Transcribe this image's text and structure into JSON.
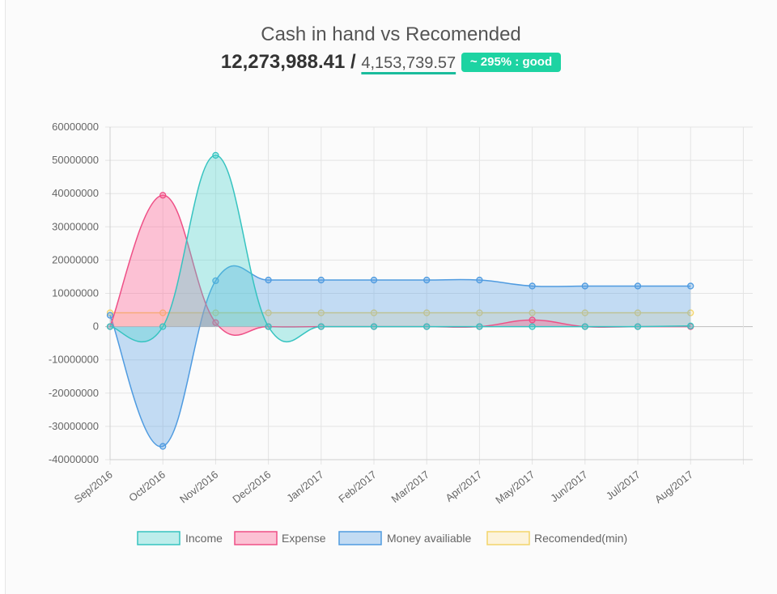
{
  "header": {
    "title": "Cash in hand vs Recomended",
    "cash_in_hand": "12,273,988.41",
    "separator": "/",
    "recommended": "4,153,739.57",
    "badge": "~ 295% : good",
    "badge_color": "#1dd3a2"
  },
  "chart_data": {
    "type": "area",
    "categories": [
      "Sep/2016",
      "Oct/2016",
      "Nov/2016",
      "Dec/2016",
      "Jan/2017",
      "Feb/2017",
      "Mar/2017",
      "Apr/2017",
      "May/2017",
      "Jun/2017",
      "Jul/2017",
      "Aug/2017"
    ],
    "ylim": [
      -40000000,
      60000000
    ],
    "yticks": [
      "60000000",
      "50000000",
      "40000000",
      "30000000",
      "20000000",
      "10000000",
      "0",
      "-10000000",
      "-20000000",
      "-30000000",
      "-40000000"
    ],
    "grid": true,
    "legend_position": "bottom",
    "series": [
      {
        "name": "Income",
        "values": [
          0,
          0,
          51500000,
          0,
          0,
          0,
          0,
          0,
          0,
          0,
          0,
          200000
        ],
        "stroke": "#36c3c0",
        "fill": "rgba(75,213,205,0.35)"
      },
      {
        "name": "Expense",
        "values": [
          0,
          39500000,
          1200000,
          0,
          0,
          0,
          0,
          0,
          2000000,
          0,
          0,
          0
        ],
        "stroke": "#ee4f86",
        "fill": "rgba(255,99,150,0.38)"
      },
      {
        "name": "Money availiable",
        "values": [
          3400000,
          -36000000,
          13800000,
          14000000,
          14000000,
          14000000,
          14000000,
          14000000,
          12200000,
          12200000,
          12200000,
          12200000
        ],
        "stroke": "#4f9be0",
        "fill": "rgba(88,160,230,0.35)"
      },
      {
        "name": "Recomended(min)",
        "values": [
          4150000,
          4150000,
          4150000,
          4150000,
          4150000,
          4150000,
          4150000,
          4150000,
          4150000,
          4150000,
          4150000,
          4150000
        ],
        "stroke": "#f3d56a",
        "fill": "rgba(255,230,160,0.35)"
      }
    ]
  }
}
